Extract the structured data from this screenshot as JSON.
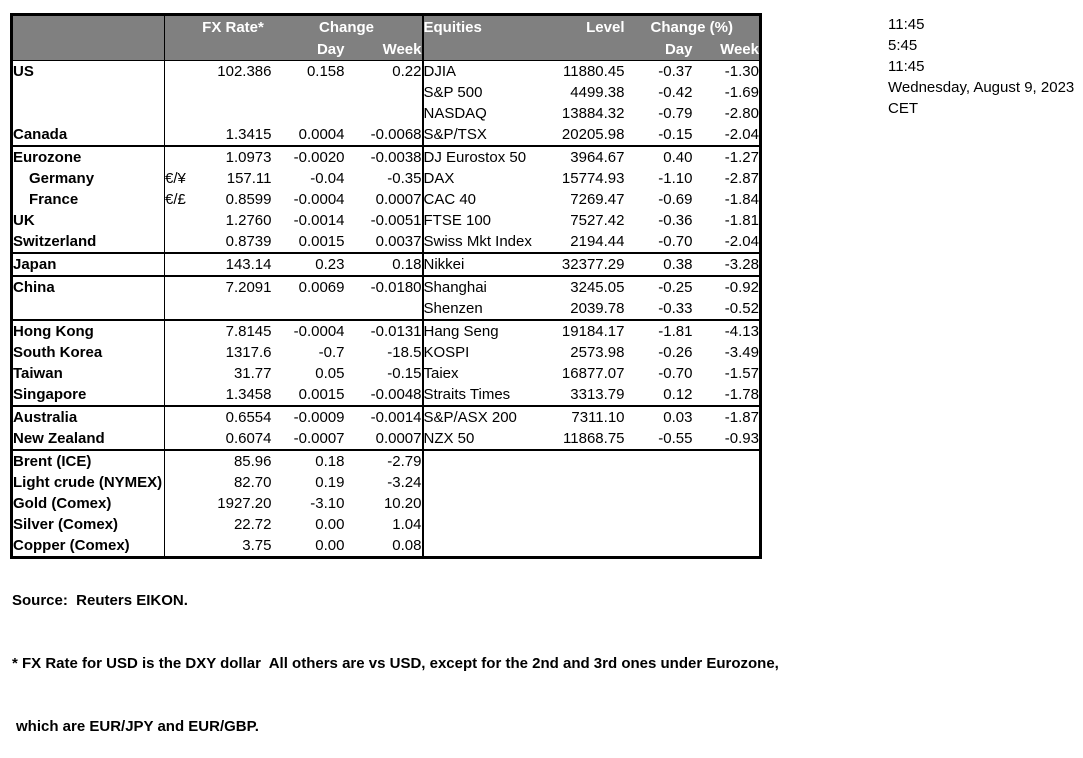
{
  "table": {
    "headers": {
      "fx_rate": "FX Rate*",
      "change": "Change",
      "day": "Day",
      "week": "Week",
      "equities": "Equities",
      "level": "Level",
      "change_pct": "Change (%)",
      "eday": "Day",
      "eweek": "Week"
    },
    "rows": [
      {
        "name": "US",
        "indent": false,
        "pair": "",
        "rate": "102.386",
        "day": "0.158",
        "week": "0.22",
        "equity": "DJIA",
        "level": "11880.45",
        "eday": "-0.37",
        "eweek": "-1.30",
        "divider": false
      },
      {
        "name": "",
        "indent": false,
        "pair": "",
        "rate": "",
        "day": "",
        "week": "",
        "equity": "S&P 500",
        "level": "4499.38",
        "eday": "-0.42",
        "eweek": "-1.69",
        "divider": false
      },
      {
        "name": "",
        "indent": false,
        "pair": "",
        "rate": "",
        "day": "",
        "week": "",
        "equity": "NASDAQ",
        "level": "13884.32",
        "eday": "-0.79",
        "eweek": "-2.80",
        "divider": false
      },
      {
        "name": "Canada",
        "indent": false,
        "pair": "",
        "rate": "1.3415",
        "day": "0.0004",
        "week": "-0.0068",
        "equity": "S&P/TSX",
        "level": "20205.98",
        "eday": "-0.15",
        "eweek": "-2.04",
        "divider": true
      },
      {
        "name": "Eurozone",
        "indent": false,
        "pair": "",
        "rate": "1.0973",
        "day": "-0.0020",
        "week": "-0.0038",
        "equity": "DJ Eurostox 50",
        "level": "3964.67",
        "eday": "0.40",
        "eweek": "-1.27",
        "divider": false
      },
      {
        "name": "Germany",
        "indent": true,
        "pair": "€/¥",
        "rate": "157.11",
        "day": "-0.04",
        "week": "-0.35",
        "equity": "DAX",
        "level": "15774.93",
        "eday": "-1.10",
        "eweek": "-2.87",
        "divider": false
      },
      {
        "name": "France",
        "indent": true,
        "pair": "€/£",
        "rate": "0.8599",
        "day": "-0.0004",
        "week": "0.0007",
        "equity": "CAC 40",
        "level": "7269.47",
        "eday": "-0.69",
        "eweek": "-1.84",
        "divider": false
      },
      {
        "name": "UK",
        "indent": false,
        "pair": "",
        "rate": "1.2760",
        "day": "-0.0014",
        "week": "-0.0051",
        "equity": "FTSE 100",
        "level": "7527.42",
        "eday": "-0.36",
        "eweek": "-1.81",
        "divider": false
      },
      {
        "name": "Switzerland",
        "indent": false,
        "pair": "",
        "rate": "0.8739",
        "day": "0.0015",
        "week": "0.0037",
        "equity": "Swiss Mkt Index",
        "level": "2194.44",
        "eday": "-0.70",
        "eweek": "-2.04",
        "divider": true
      },
      {
        "name": "Japan",
        "indent": false,
        "pair": "",
        "rate": "143.14",
        "day": "0.23",
        "week": "0.18",
        "equity": "Nikkei",
        "level": "32377.29",
        "eday": "0.38",
        "eweek": "-3.28",
        "divider": true
      },
      {
        "name": "China",
        "indent": false,
        "pair": "",
        "rate": "7.2091",
        "day": "0.0069",
        "week": "-0.0180",
        "equity": "Shanghai",
        "level": "3245.05",
        "eday": "-0.25",
        "eweek": "-0.92",
        "divider": false
      },
      {
        "name": "",
        "indent": false,
        "pair": "",
        "rate": "",
        "day": "",
        "week": "",
        "equity": "Shenzen",
        "level": "2039.78",
        "eday": "-0.33",
        "eweek": "-0.52",
        "divider": true
      },
      {
        "name": "Hong Kong",
        "indent": false,
        "pair": "",
        "rate": "7.8145",
        "day": "-0.0004",
        "week": "-0.0131",
        "equity": "Hang Seng",
        "level": "19184.17",
        "eday": "-1.81",
        "eweek": "-4.13",
        "divider": false
      },
      {
        "name": "South Korea",
        "indent": false,
        "pair": "",
        "rate": "1317.6",
        "day": "-0.7",
        "week": "-18.5",
        "equity": "KOSPI",
        "level": "2573.98",
        "eday": "-0.26",
        "eweek": "-3.49",
        "divider": false
      },
      {
        "name": "Taiwan",
        "indent": false,
        "pair": "",
        "rate": "31.77",
        "day": "0.05",
        "week": "-0.15",
        "equity": "Taiex",
        "level": "16877.07",
        "eday": "-0.70",
        "eweek": "-1.57",
        "divider": false
      },
      {
        "name": "Singapore",
        "indent": false,
        "pair": "",
        "rate": "1.3458",
        "day": "0.0015",
        "week": "-0.0048",
        "equity": "Straits Times",
        "level": "3313.79",
        "eday": "0.12",
        "eweek": "-1.78",
        "divider": true
      },
      {
        "name": "Australia",
        "indent": false,
        "pair": "",
        "rate": "0.6554",
        "day": "-0.0009",
        "week": "-0.0014",
        "equity": "S&P/ASX  200",
        "level": "7311.10",
        "eday": "0.03",
        "eweek": "-1.87",
        "divider": false
      },
      {
        "name": "New Zealand",
        "indent": false,
        "pair": "",
        "rate": "0.6074",
        "day": "-0.0007",
        "week": "0.0007",
        "equity": "NZX 50",
        "level": "11868.75",
        "eday": "-0.55",
        "eweek": "-0.93",
        "divider": true
      },
      {
        "name": "Brent (ICE)",
        "indent": false,
        "pair": "",
        "rate": "85.96",
        "day": "0.18",
        "week": "-2.79",
        "equity": "",
        "level": "",
        "eday": "",
        "eweek": "",
        "divider": false
      },
      {
        "name": "Light crude (NYMEX)",
        "indent": false,
        "pair": "",
        "rate": "82.70",
        "day": "0.19",
        "week": "-3.24",
        "equity": "",
        "level": "",
        "eday": "",
        "eweek": "",
        "divider": false
      },
      {
        "name": "Gold (Comex)",
        "indent": false,
        "pair": "",
        "rate": "1927.20",
        "day": "-3.10",
        "week": "10.20",
        "equity": "",
        "level": "",
        "eday": "",
        "eweek": "",
        "divider": false
      },
      {
        "name": "Silver (Comex)",
        "indent": false,
        "pair": "",
        "rate": "22.72",
        "day": "0.00",
        "week": "1.04",
        "equity": "",
        "level": "",
        "eday": "",
        "eweek": "",
        "divider": false
      },
      {
        "name": "Copper (Comex)",
        "indent": false,
        "pair": "",
        "rate": "3.75",
        "day": "0.00",
        "week": "0.08",
        "equity": "",
        "level": "",
        "eday": "",
        "eweek": "",
        "divider": false
      }
    ]
  },
  "datetime_panel": {
    "lines": [
      "11:45",
      "5:45",
      "11:45",
      "Wednesday, August 9, 2023",
      "CET"
    ]
  },
  "footnotes": {
    "source": "Source:  Reuters EIKON.",
    "note1": "* FX Rate for USD is the DXY dollar  All others are vs USD, except for the 2nd and 3rd ones under Eurozone,",
    "note2": "which are EUR/JPY and EUR/GBP."
  },
  "colors": {
    "header_bg": "#808080",
    "header_text": "#ffffff",
    "border": "#000000",
    "text": "#000000"
  }
}
